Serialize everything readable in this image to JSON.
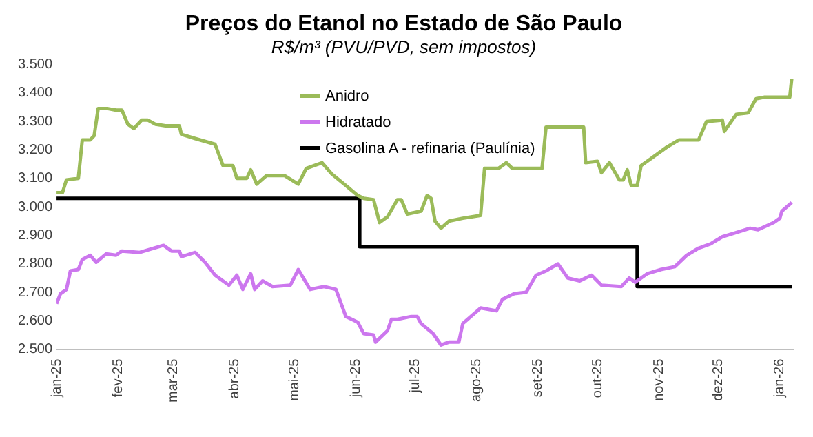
{
  "chart_data": {
    "type": "line",
    "title": "Preços do Etanol no Estado de São Paulo",
    "subtitle": "R$/m³ (PVU/PVD, sem impostos)",
    "xlim": [
      "2025-01-01",
      "2026-01-08"
    ],
    "xticks": [
      {
        "value": "2025-01-01",
        "label": "jan-25"
      },
      {
        "value": "2025-02-01",
        "label": "fev-25"
      },
      {
        "value": "2025-03-01",
        "label": "mar-25"
      },
      {
        "value": "2025-04-01",
        "label": "abr-25"
      },
      {
        "value": "2025-05-01",
        "label": "mai-25"
      },
      {
        "value": "2025-06-01",
        "label": "jun-25"
      },
      {
        "value": "2025-07-01",
        "label": "jul-25"
      },
      {
        "value": "2025-08-01",
        "label": "ago-25"
      },
      {
        "value": "2025-09-01",
        "label": "set-25"
      },
      {
        "value": "2025-10-01",
        "label": "out-25"
      },
      {
        "value": "2025-11-01",
        "label": "nov-25"
      },
      {
        "value": "2025-12-01",
        "label": "dez-25"
      },
      {
        "value": "2026-01-01",
        "label": "jan-26"
      }
    ],
    "ylim": [
      2500,
      3500
    ],
    "yticks": [
      {
        "value": 2500,
        "label": "2.500"
      },
      {
        "value": 2600,
        "label": "2.600"
      },
      {
        "value": 2700,
        "label": "2.700"
      },
      {
        "value": 2800,
        "label": "2.800"
      },
      {
        "value": 2900,
        "label": "2.900"
      },
      {
        "value": 3000,
        "label": "3.000"
      },
      {
        "value": 3100,
        "label": "3.100"
      },
      {
        "value": 3200,
        "label": "3.200"
      },
      {
        "value": 3300,
        "label": "3.300"
      },
      {
        "value": 3400,
        "label": "3.400"
      },
      {
        "value": 3500,
        "label": "3.500"
      }
    ],
    "grid": false,
    "legend": "top",
    "marker": "none",
    "line_style": "solid",
    "series": [
      {
        "name": "Anidro",
        "color": "#9bbb59",
        "x": [
          "2025-01-01",
          "2025-01-04",
          "2025-01-06",
          "2025-01-12",
          "2025-01-14",
          "2025-01-18",
          "2025-01-20",
          "2025-01-22",
          "2025-01-27",
          "2025-01-31",
          "2025-02-03",
          "2025-02-06",
          "2025-02-09",
          "2025-02-13",
          "2025-02-16",
          "2025-02-20",
          "2025-02-25",
          "2025-03-04",
          "2025-03-05",
          "2025-03-12",
          "2025-03-22",
          "2025-03-26",
          "2025-03-31",
          "2025-04-02",
          "2025-04-07",
          "2025-04-09",
          "2025-04-12",
          "2025-04-17",
          "2025-04-26",
          "2025-05-03",
          "2025-05-07",
          "2025-05-15",
          "2025-05-20",
          "2025-05-27",
          "2025-06-02",
          "2025-06-05",
          "2025-06-10",
          "2025-06-13",
          "2025-06-17",
          "2025-06-22",
          "2025-06-24",
          "2025-06-27",
          "2025-07-04",
          "2025-07-07",
          "2025-07-09",
          "2025-07-11",
          "2025-07-14",
          "2025-07-18",
          "2025-07-25",
          "2025-08-03",
          "2025-08-05",
          "2025-08-12",
          "2025-08-16",
          "2025-08-19",
          "2025-09-03",
          "2025-09-05",
          "2025-09-24",
          "2025-09-25",
          "2025-10-01",
          "2025-10-03",
          "2025-10-07",
          "2025-10-12",
          "2025-10-14",
          "2025-10-16",
          "2025-10-18",
          "2025-10-21",
          "2025-10-23",
          "2025-10-28",
          "2025-11-05",
          "2025-11-11",
          "2025-11-21",
          "2025-11-25",
          "2025-12-03",
          "2025-12-04",
          "2025-12-10",
          "2025-12-16",
          "2025-12-20",
          "2025-12-24",
          "2026-01-06",
          "2026-01-07"
        ],
        "values": [
          3050,
          3050,
          3095,
          3100,
          3235,
          3235,
          3250,
          3345,
          3345,
          3340,
          3340,
          3290,
          3275,
          3305,
          3305,
          3290,
          3285,
          3285,
          3255,
          3240,
          3220,
          3145,
          3145,
          3100,
          3100,
          3130,
          3080,
          3110,
          3110,
          3080,
          3135,
          3155,
          3115,
          3075,
          3040,
          3030,
          3025,
          2945,
          2965,
          3025,
          3025,
          2975,
          2985,
          3040,
          3030,
          2950,
          2925,
          2950,
          2960,
          2970,
          3135,
          3135,
          3155,
          3135,
          3135,
          3280,
          3280,
          3155,
          3160,
          3120,
          3155,
          3095,
          3095,
          3130,
          3075,
          3075,
          3145,
          3170,
          3210,
          3235,
          3235,
          3300,
          3305,
          3265,
          3325,
          3330,
          3380,
          3385,
          3385,
          3450
        ]
      },
      {
        "name": "Hidratado",
        "color": "#cc77ee",
        "x": [
          "2025-01-01",
          "2025-01-03",
          "2025-01-06",
          "2025-01-08",
          "2025-01-12",
          "2025-01-14",
          "2025-01-18",
          "2025-01-21",
          "2025-01-26",
          "2025-01-31",
          "2025-02-03",
          "2025-02-12",
          "2025-02-19",
          "2025-02-24",
          "2025-02-28",
          "2025-03-04",
          "2025-03-05",
          "2025-03-12",
          "2025-03-17",
          "2025-03-22",
          "2025-03-29",
          "2025-04-02",
          "2025-04-05",
          "2025-04-09",
          "2025-04-11",
          "2025-04-15",
          "2025-04-20",
          "2025-04-29",
          "2025-05-03",
          "2025-05-09",
          "2025-05-16",
          "2025-05-22",
          "2025-05-27",
          "2025-06-02",
          "2025-06-05",
          "2025-06-10",
          "2025-06-11",
          "2025-06-17",
          "2025-06-19",
          "2025-06-22",
          "2025-06-29",
          "2025-07-02",
          "2025-07-04",
          "2025-07-10",
          "2025-07-14",
          "2025-07-18",
          "2025-07-23",
          "2025-07-25",
          "2025-08-03",
          "2025-08-11",
          "2025-08-14",
          "2025-08-20",
          "2025-08-26",
          "2025-08-31",
          "2025-09-05",
          "2025-09-11",
          "2025-09-16",
          "2025-09-22",
          "2025-09-28",
          "2025-10-03",
          "2025-10-13",
          "2025-10-17",
          "2025-10-20",
          "2025-10-26",
          "2025-11-02",
          "2025-11-09",
          "2025-11-15",
          "2025-11-21",
          "2025-11-27",
          "2025-12-03",
          "2025-12-10",
          "2025-12-17",
          "2025-12-21",
          "2025-12-29",
          "2026-01-01",
          "2026-01-02",
          "2026-01-07"
        ],
        "values": [
          2660,
          2695,
          2710,
          2775,
          2780,
          2815,
          2830,
          2805,
          2835,
          2830,
          2845,
          2840,
          2855,
          2865,
          2845,
          2845,
          2825,
          2840,
          2805,
          2760,
          2725,
          2760,
          2710,
          2765,
          2710,
          2740,
          2720,
          2725,
          2780,
          2710,
          2720,
          2710,
          2615,
          2595,
          2555,
          2550,
          2525,
          2565,
          2605,
          2605,
          2615,
          2615,
          2590,
          2555,
          2515,
          2525,
          2525,
          2590,
          2645,
          2635,
          2675,
          2695,
          2700,
          2760,
          2775,
          2800,
          2750,
          2740,
          2760,
          2725,
          2720,
          2750,
          2735,
          2765,
          2780,
          2790,
          2830,
          2855,
          2870,
          2895,
          2910,
          2925,
          2920,
          2945,
          2960,
          2985,
          3015
        ]
      },
      {
        "name": "Gasolina A - refinaria (Paulínia)",
        "type": "step",
        "color": "#000000",
        "x": [
          "2025-01-01",
          "2025-06-03",
          "2025-10-21",
          "2026-01-07"
        ],
        "values": [
          3030,
          2860,
          2720,
          2720
        ]
      }
    ]
  }
}
